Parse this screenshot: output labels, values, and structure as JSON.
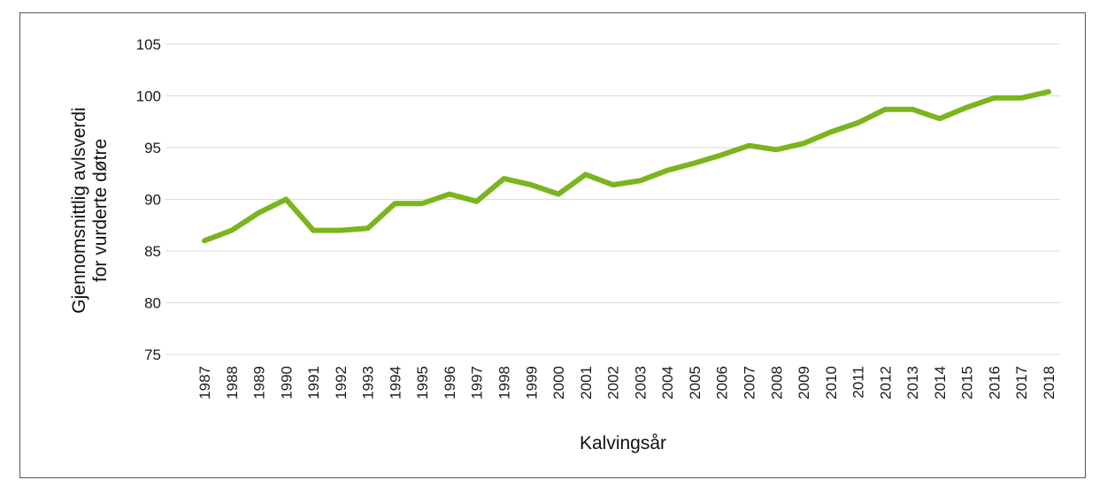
{
  "chart_data": {
    "type": "line",
    "title": "",
    "xlabel": "Kalvingsår",
    "ylabel_lines": [
      "Gjennomsnittlig avlsverdi",
      "for vurderte døtre"
    ],
    "ylim": [
      75,
      105
    ],
    "yticks": [
      75,
      80,
      85,
      90,
      95,
      100,
      105
    ],
    "grid": true,
    "legend": "none",
    "x": [
      "1987",
      "1988",
      "1989",
      "1990",
      "1991",
      "1992",
      "1993",
      "1994",
      "1995",
      "1996",
      "1997",
      "1998",
      "1999",
      "2000",
      "2001",
      "2002",
      "2003",
      "2004",
      "2005",
      "2006",
      "2007",
      "2008",
      "2009",
      "2010",
      "2011",
      "2012",
      "2013",
      "2014",
      "2015",
      "2016",
      "2017",
      "2018"
    ],
    "series": [
      {
        "color": "#7ab51d",
        "values": [
          86.0,
          87.0,
          88.7,
          90.0,
          87.0,
          87.0,
          87.2,
          89.6,
          89.6,
          90.5,
          89.8,
          92.0,
          91.4,
          90.5,
          92.4,
          91.4,
          91.8,
          92.8,
          93.5,
          94.3,
          95.2,
          94.8,
          95.4,
          96.5,
          97.4,
          98.7,
          98.7,
          97.8,
          98.9,
          99.8,
          99.8,
          100.4
        ]
      }
    ]
  }
}
